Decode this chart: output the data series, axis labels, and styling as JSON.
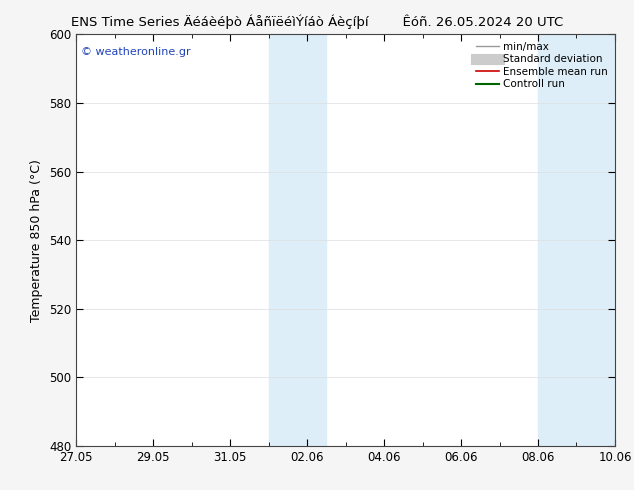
{
  "title_left": "ENS Time Series Äéáèéþò ÁåñïëéìÝíáò Áèçíþí",
  "title_right": "Êóñ. 26.05.2024 20 UTC",
  "ylabel": "Temperature 850 hPa (°C)",
  "ylim": [
    480,
    600
  ],
  "yticks": [
    480,
    500,
    520,
    540,
    560,
    580,
    600
  ],
  "xlim": [
    0,
    14
  ],
  "xtick_labels": [
    "27.05",
    "29.05",
    "31.05",
    "02.06",
    "04.06",
    "06.06",
    "08.06",
    "10.06"
  ],
  "xtick_positions": [
    0,
    2,
    4,
    6,
    8,
    10,
    12,
    14
  ],
  "shaded_regions": [
    {
      "x_start": 5,
      "x_end": 6.5,
      "color": "#ddeef8"
    },
    {
      "x_start": 12,
      "x_end": 14,
      "color": "#ddeef8"
    }
  ],
  "legend_entries": [
    {
      "label": "min/max",
      "color": "#999999",
      "linewidth": 1.0
    },
    {
      "label": "Standard deviation",
      "color": "#cccccc",
      "linewidth": 8
    },
    {
      "label": "Ensemble mean run",
      "color": "#cc0000",
      "linewidth": 1.2
    },
    {
      "label": "Controll run",
      "color": "#006600",
      "linewidth": 1.5
    }
  ],
  "watermark": "© weatheronline.gr",
  "watermark_color": "#2244bb",
  "figure_bg": "#f5f5f5",
  "plot_bg": "#ffffff",
  "title_fontsize": 9.5,
  "axis_label_fontsize": 9,
  "tick_fontsize": 8.5,
  "legend_fontsize": 7.5
}
